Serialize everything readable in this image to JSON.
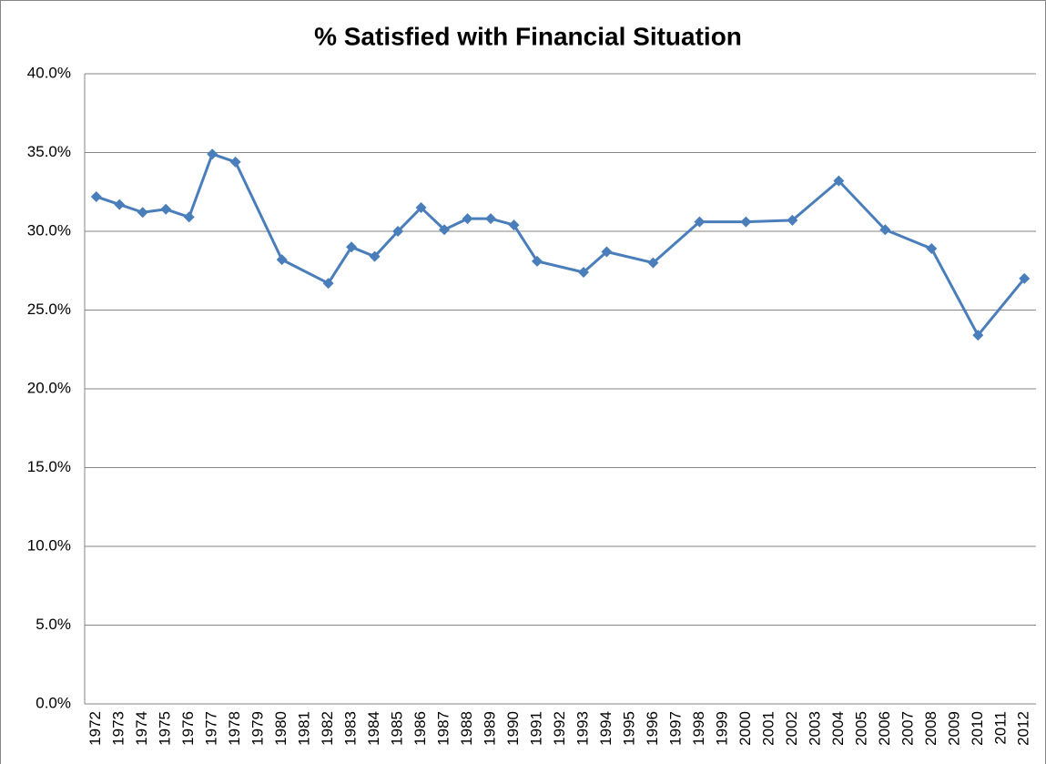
{
  "chart_data": {
    "type": "line",
    "title": "% Satisfied with Financial Situation",
    "x": [
      1972,
      1973,
      1974,
      1975,
      1976,
      1977,
      1978,
      1980,
      1982,
      1983,
      1984,
      1985,
      1986,
      1987,
      1988,
      1989,
      1990,
      1991,
      1993,
      1994,
      1996,
      1998,
      2000,
      2002,
      2004,
      2006,
      2008,
      2010,
      2012
    ],
    "series": [
      {
        "name": "% Satisfied",
        "color": "#4a7ebb",
        "values": [
          32.2,
          31.7,
          31.2,
          31.4,
          30.9,
          34.9,
          34.4,
          28.2,
          26.7,
          29.0,
          28.4,
          30.0,
          31.5,
          30.1,
          30.8,
          30.8,
          30.4,
          28.1,
          27.4,
          28.7,
          28.0,
          30.6,
          30.6,
          30.7,
          33.2,
          30.1,
          28.9,
          23.4,
          27.0
        ]
      }
    ],
    "xlim": [
      1971.5,
      2012.5
    ],
    "xticks": [
      1972,
      1973,
      1974,
      1975,
      1976,
      1977,
      1978,
      1979,
      1980,
      1981,
      1982,
      1983,
      1984,
      1985,
      1986,
      1987,
      1988,
      1989,
      1990,
      1991,
      1992,
      1993,
      1994,
      1995,
      1996,
      1997,
      1998,
      1999,
      2000,
      2001,
      2002,
      2003,
      2004,
      2005,
      2006,
      2007,
      2008,
      2009,
      2010,
      2011,
      2012
    ],
    "ylim": [
      0,
      40
    ],
    "yticks": [
      {
        "value": 0,
        "label": "0.0%"
      },
      {
        "value": 5,
        "label": "5.0%"
      },
      {
        "value": 10,
        "label": "10.0%"
      },
      {
        "value": 15,
        "label": "15.0%"
      },
      {
        "value": 20,
        "label": "20.0%"
      },
      {
        "value": 25,
        "label": "25.0%"
      },
      {
        "value": 30,
        "label": "30.0%"
      },
      {
        "value": 35,
        "label": "35.0%"
      },
      {
        "value": 40,
        "label": "40.0%"
      }
    ],
    "grid": true
  }
}
